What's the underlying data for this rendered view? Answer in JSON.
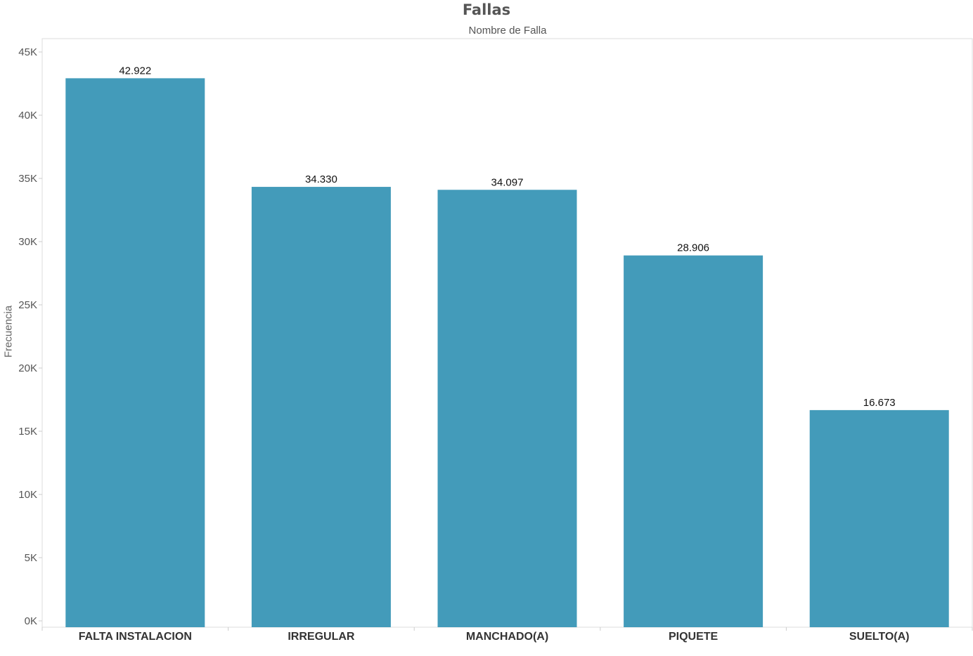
{
  "chart_data": {
    "type": "bar",
    "title": "Fallas",
    "x_header": "Nombre de Falla",
    "ylabel": "Frecuencia",
    "categories": [
      "FALTA INSTALACION",
      "IRREGULAR",
      "MANCHADO(A)",
      "PIQUETE",
      "SUELTO(A)"
    ],
    "values": [
      42922,
      34330,
      34097,
      28906,
      16673
    ],
    "value_labels": [
      "42.922",
      "34.330",
      "34.097",
      "28.906",
      "16.673"
    ],
    "ylim": [
      0,
      45000
    ],
    "yticks": [
      0,
      5000,
      10000,
      15000,
      20000,
      25000,
      30000,
      35000,
      40000,
      45000
    ],
    "ytick_labels": [
      "0K",
      "5K",
      "10K",
      "15K",
      "20K",
      "25K",
      "30K",
      "35K",
      "40K",
      "45K"
    ],
    "grid": false,
    "colors": {
      "bar": "#439bba",
      "axis": "#dddddd",
      "tick_text": "#555555",
      "label_text": "#333333"
    }
  }
}
